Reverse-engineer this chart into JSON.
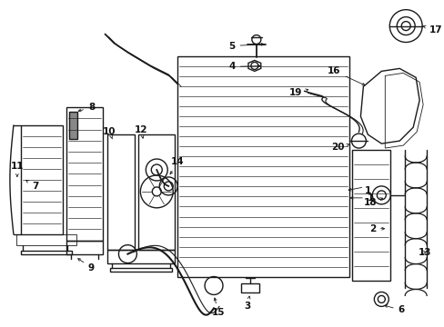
{
  "background_color": "#ffffff",
  "line_color": "#1a1a1a",
  "label_color": "#111111",
  "fig_width": 4.89,
  "fig_height": 3.6,
  "dpi": 100,
  "lw_main": 1.0,
  "lw_thick": 1.5,
  "lw_thin": 0.6,
  "label_fontsize": 7.5,
  "arrow_mutation_scale": 5
}
